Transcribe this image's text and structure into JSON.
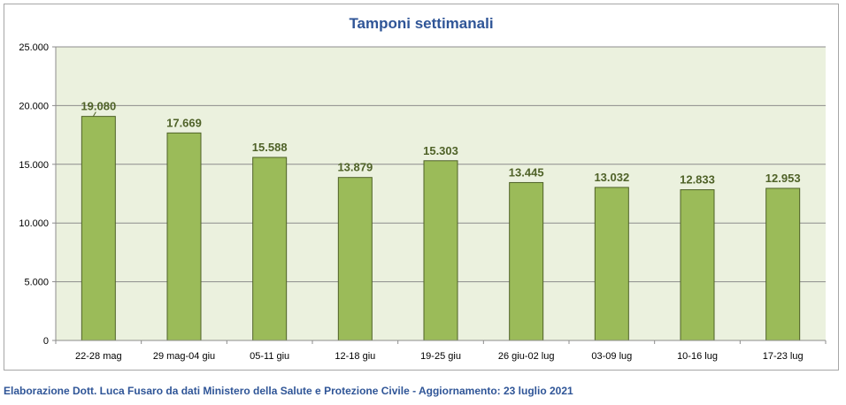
{
  "chart_data": {
    "type": "bar",
    "title": "Tamponi settimanali",
    "categories": [
      "22-28 mag",
      "29 mag-04 giu",
      "05-11 giu",
      "12-18 giu",
      "19-25 giu",
      "26 giu-02 lug",
      "03-09 lug",
      "10-16 lug",
      "17-23 lug"
    ],
    "values": [
      19080,
      17669,
      15588,
      13879,
      15303,
      13445,
      13032,
      12833,
      12953
    ],
    "value_labels": [
      "19.080",
      "17.669",
      "15.588",
      "13.879",
      "15.303",
      "13.445",
      "13.032",
      "12.833",
      "12.953"
    ],
    "ylim": [
      0,
      25000
    ],
    "yticks": [
      0,
      5000,
      10000,
      15000,
      20000,
      25000
    ],
    "ytick_labels": [
      "0",
      "5.000",
      "10.000",
      "15.000",
      "20.000",
      "25.000"
    ],
    "grid": true,
    "legend": "none",
    "colors": {
      "bar": "#9bbb59",
      "bar_border": "#4f6228",
      "plot_background": "#ebf1de",
      "title": "#2f5597",
      "data_label": "#4f6228"
    }
  },
  "caption": "Elaborazione Dott. Luca Fusaro da dati Ministero della Salute e Protezione Civile - Aggiornamento: 23 luglio 2021"
}
